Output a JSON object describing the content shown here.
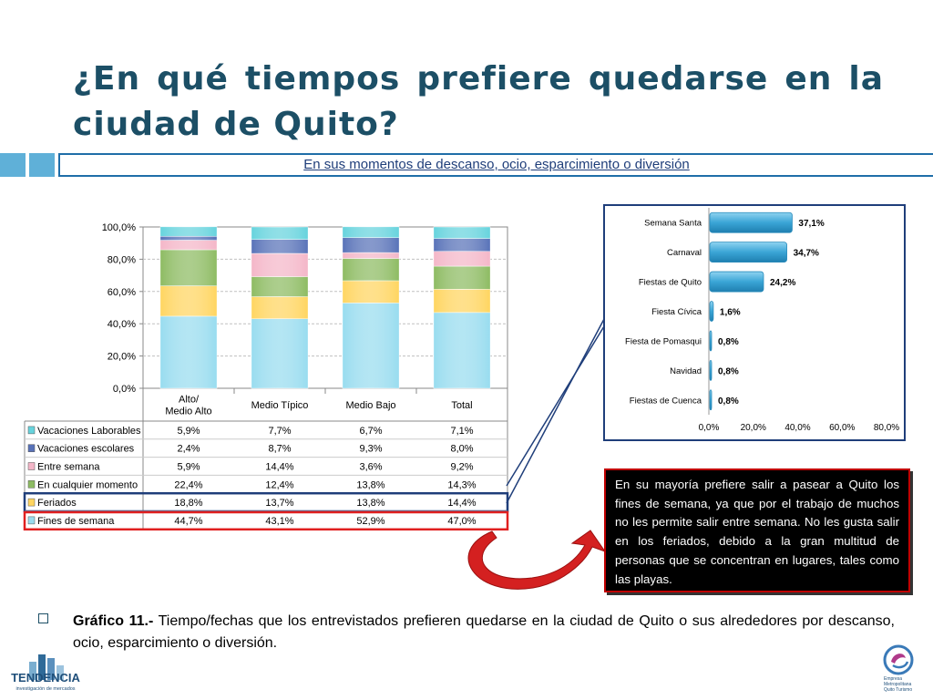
{
  "title_line1": "¿En qué tiempos prefiere quedarse en la",
  "title_line2": "ciudad de Quito?",
  "subtitle": "En sus momentos de descanso, ocio, esparcimiento o diversión",
  "colors": {
    "title": "#1c4f66",
    "banner": "#1f6ea8",
    "vacaciones_laborables": "#66d3dd",
    "vacaciones_escolares": "#5872b8",
    "entre_semana": "#f4b6c8",
    "en_cualquier_momento": "#8dbb62",
    "feriados": "#ffd560",
    "fines_de_semana": "#98dcef",
    "hbar": "#3aa5d6",
    "highlight_blue": "#1f3e7a",
    "highlight_red": "#e02020",
    "arrow": "#d42020"
  },
  "chart_data": [
    {
      "type": "bar",
      "stacked": true,
      "categories": [
        "Alto/ Medio Alto",
        "Medio Típico",
        "Medio Bajo",
        "Total"
      ],
      "ylim": [
        0,
        100
      ],
      "yticks": [
        "0,0%",
        "20,0%",
        "40,0%",
        "60,0%",
        "80,0%",
        "100,0%"
      ],
      "grid": true,
      "series": [
        {
          "name": "Fines de semana",
          "values": [
            44.7,
            43.1,
            52.9,
            47.0
          ],
          "labels": [
            "44,7%",
            "43,1%",
            "52,9%",
            "47,0%"
          ]
        },
        {
          "name": "Feriados",
          "values": [
            18.8,
            13.7,
            13.8,
            14.4
          ],
          "labels": [
            "18,8%",
            "13,7%",
            "13,8%",
            "14,4%"
          ]
        },
        {
          "name": "En cualquier momento",
          "values": [
            22.4,
            12.4,
            13.8,
            14.3
          ],
          "labels": [
            "22,4%",
            "12,4%",
            "13,8%",
            "14,3%"
          ]
        },
        {
          "name": "Entre semana",
          "values": [
            5.9,
            14.4,
            3.6,
            9.2
          ],
          "labels": [
            "5,9%",
            "14,4%",
            "3,6%",
            "9,2%"
          ]
        },
        {
          "name": "Vacaciones escolares",
          "values": [
            2.4,
            8.7,
            9.3,
            8.0
          ],
          "labels": [
            "2,4%",
            "8,7%",
            "9,3%",
            "8,0%"
          ]
        },
        {
          "name": "Vacaciones Laborables",
          "values": [
            5.9,
            7.7,
            6.7,
            7.1
          ],
          "labels": [
            "5,9%",
            "7,7%",
            "6,7%",
            "7,1%"
          ]
        }
      ],
      "table_row_order": [
        "Vacaciones Laborables",
        "Vacaciones escolares",
        "Entre semana",
        "En cualquier momento",
        "Feriados",
        "Fines de semana"
      ],
      "highlighted_rows": {
        "blue": "Feriados",
        "red": "Fines de semana"
      }
    },
    {
      "type": "bar",
      "orientation": "horizontal",
      "categories": [
        "Semana Santa",
        "Carnaval",
        "Fiestas de Quito",
        "Fiesta Cívica",
        "Fiesta de Pomasqui",
        "Navidad",
        "Fiestas de Cuenca"
      ],
      "values": [
        37.1,
        34.7,
        24.2,
        1.6,
        0.8,
        0.8,
        0.8
      ],
      "labels": [
        "37,1%",
        "34,7%",
        "24,2%",
        "1,6%",
        "0,8%",
        "0,8%",
        "0,8%"
      ],
      "xlim": [
        0,
        80
      ],
      "xticks": [
        "0,0%",
        "20,0%",
        "40,0%",
        "60,0%",
        "80,0%"
      ],
      "grid": false
    }
  ],
  "callout": "En su mayoría prefiere salir a pasear a Quito los fines de semana, ya que por el trabajo de muchos no les permite salir entre semana. No les gusta salir en los feriados, debido a la gran multitud de personas que se concentran en lugares, tales como las playas.",
  "caption": {
    "bold": "Gráfico 11.-",
    "text": " Tiempo/fechas que los entrevistados prefieren quedarse en la ciudad de Quito o sus alrededores por descanso, ocio, esparcimiento o diversión."
  },
  "logo_left": {
    "name": "TENDENCIA",
    "tagline": "investigación de mercados"
  },
  "logo_right": {
    "lines": [
      "Empresa",
      "Metropolitana",
      "Quito Turismo"
    ]
  }
}
